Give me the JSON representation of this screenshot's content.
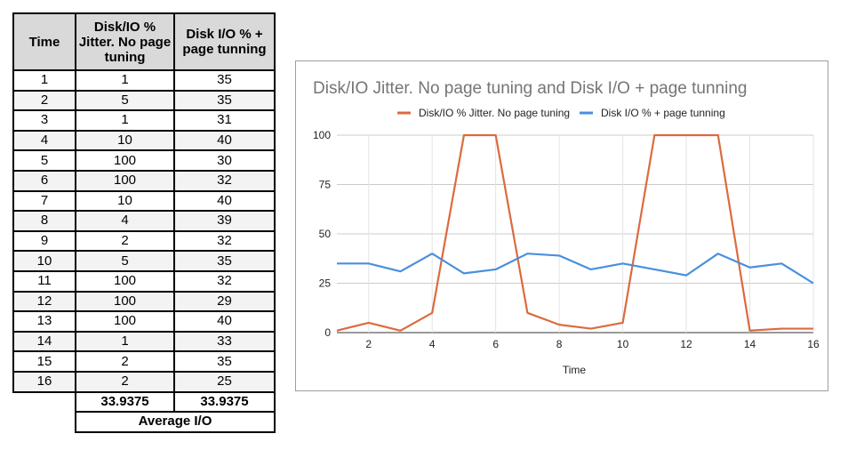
{
  "table": {
    "headers": [
      "Time",
      "Disk/IO % Jitter. No page tuning",
      "Disk I/O % + page tunning"
    ],
    "rows": [
      [
        "1",
        "1",
        "35"
      ],
      [
        "2",
        "5",
        "35"
      ],
      [
        "3",
        "1",
        "31"
      ],
      [
        "4",
        "10",
        "40"
      ],
      [
        "5",
        "100",
        "30"
      ],
      [
        "6",
        "100",
        "32"
      ],
      [
        "7",
        "10",
        "40"
      ],
      [
        "8",
        "4",
        "39"
      ],
      [
        "9",
        "2",
        "32"
      ],
      [
        "10",
        "5",
        "35"
      ],
      [
        "11",
        "100",
        "32"
      ],
      [
        "12",
        "100",
        "29"
      ],
      [
        "13",
        "100",
        "40"
      ],
      [
        "14",
        "1",
        "33"
      ],
      [
        "15",
        "2",
        "35"
      ],
      [
        "16",
        "2",
        "25"
      ]
    ],
    "averages": [
      "33.9375",
      "33.9375"
    ],
    "footer_label": "Average I/O"
  },
  "chart_data": {
    "type": "line",
    "title": "Disk/IO Jitter. No page tuning and Disk I/O + page tunning",
    "xlabel": "Time",
    "ylabel": "",
    "x": [
      1,
      2,
      3,
      4,
      5,
      6,
      7,
      8,
      9,
      10,
      11,
      12,
      13,
      14,
      15,
      16
    ],
    "xlim": [
      1,
      16
    ],
    "ylim": [
      0,
      100
    ],
    "xticks": [
      2,
      4,
      6,
      8,
      10,
      12,
      14,
      16
    ],
    "yticks": [
      0,
      25,
      50,
      75,
      100
    ],
    "grid": true,
    "legend_position": "top",
    "series": [
      {
        "name": "Disk/IO % Jitter. No page tuning",
        "color": "#dc6a3f",
        "values": [
          1,
          5,
          1,
          10,
          100,
          100,
          10,
          4,
          2,
          5,
          100,
          100,
          100,
          1,
          2,
          2
        ]
      },
      {
        "name": "Disk I/O % + page tunning",
        "color": "#4a8fdb",
        "values": [
          35,
          35,
          31,
          40,
          30,
          32,
          40,
          39,
          32,
          35,
          32,
          29,
          40,
          33,
          35,
          25
        ]
      }
    ]
  }
}
